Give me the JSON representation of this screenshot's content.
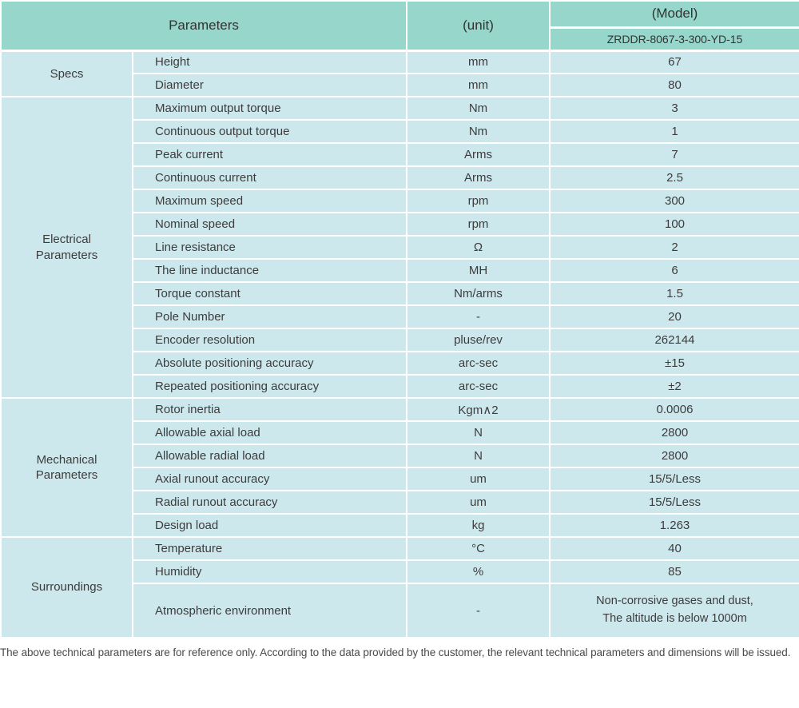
{
  "header": {
    "parameters": "Parameters",
    "unit": "(unit)",
    "model": "(Model)",
    "model_value": "ZRDDR-8067-3-300-YD-15"
  },
  "sections": [
    {
      "group": "Specs",
      "rows": [
        {
          "param": "Height",
          "unit": "mm",
          "value": "67"
        },
        {
          "param": "Diameter",
          "unit": "mm",
          "value": "80"
        }
      ]
    },
    {
      "group": "Electrical\nParameters",
      "rows": [
        {
          "param": "Maximum output torque",
          "unit": "Nm",
          "value": "3"
        },
        {
          "param": "Continuous output torque",
          "unit": "Nm",
          "value": "1"
        },
        {
          "param": "Peak current",
          "unit": "Arms",
          "value": "7"
        },
        {
          "param": "Continuous current",
          "unit": "Arms",
          "value": "2.5"
        },
        {
          "param": "Maximum speed",
          "unit": "rpm",
          "value": "300"
        },
        {
          "param": "Nominal speed",
          "unit": "rpm",
          "value": "100"
        },
        {
          "param": "Line resistance",
          "unit": "Ω",
          "value": "2"
        },
        {
          "param": "The line inductance",
          "unit": "MH",
          "value": "6"
        },
        {
          "param": "Torque constant",
          "unit": "Nm/arms",
          "value": "1.5"
        },
        {
          "param": "Pole Number",
          "unit": "-",
          "value": "20"
        },
        {
          "param": "Encoder resolution",
          "unit": "pluse/rev",
          "value": "262144"
        },
        {
          "param": "Absolute positioning accuracy",
          "unit": "arc-sec",
          "value": "±15"
        },
        {
          "param": "Repeated positioning accuracy",
          "unit": "arc-sec",
          "value": "±2"
        }
      ]
    },
    {
      "group": "Mechanical\nParameters",
      "rows": [
        {
          "param": "Rotor inertia",
          "unit": "Kgm∧2",
          "value": "0.0006"
        },
        {
          "param": "Allowable axial load",
          "unit": "N",
          "value": "2800"
        },
        {
          "param": "Allowable radial load",
          "unit": "N",
          "value": "2800"
        },
        {
          "param": "Axial runout accuracy",
          "unit": "um",
          "value": "15/5/Less"
        },
        {
          "param": "Radial runout accuracy",
          "unit": "um",
          "value": "15/5/Less"
        },
        {
          "param": "Design load",
          "unit": "kg",
          "value": "1.263"
        }
      ]
    },
    {
      "group": "Surroundings",
      "rows": [
        {
          "param": "Temperature",
          "unit": "°C",
          "value": "40"
        },
        {
          "param": "Humidity",
          "unit": "%",
          "value": "85"
        },
        {
          "param": "Atmospheric environment",
          "unit": "-",
          "value": "Non-corrosive gases and dust,\nThe altitude is below 1000m",
          "tall": true
        }
      ]
    }
  ],
  "footnote": "The above technical parameters are for reference only. According to the data provided by the customer, the relevant technical parameters and dimensions will be issued.",
  "colors": {
    "header_bg": "#96d6cb",
    "row_bg": "#cde8ed",
    "border": "#ffffff",
    "text": "#3c3c3c"
  }
}
